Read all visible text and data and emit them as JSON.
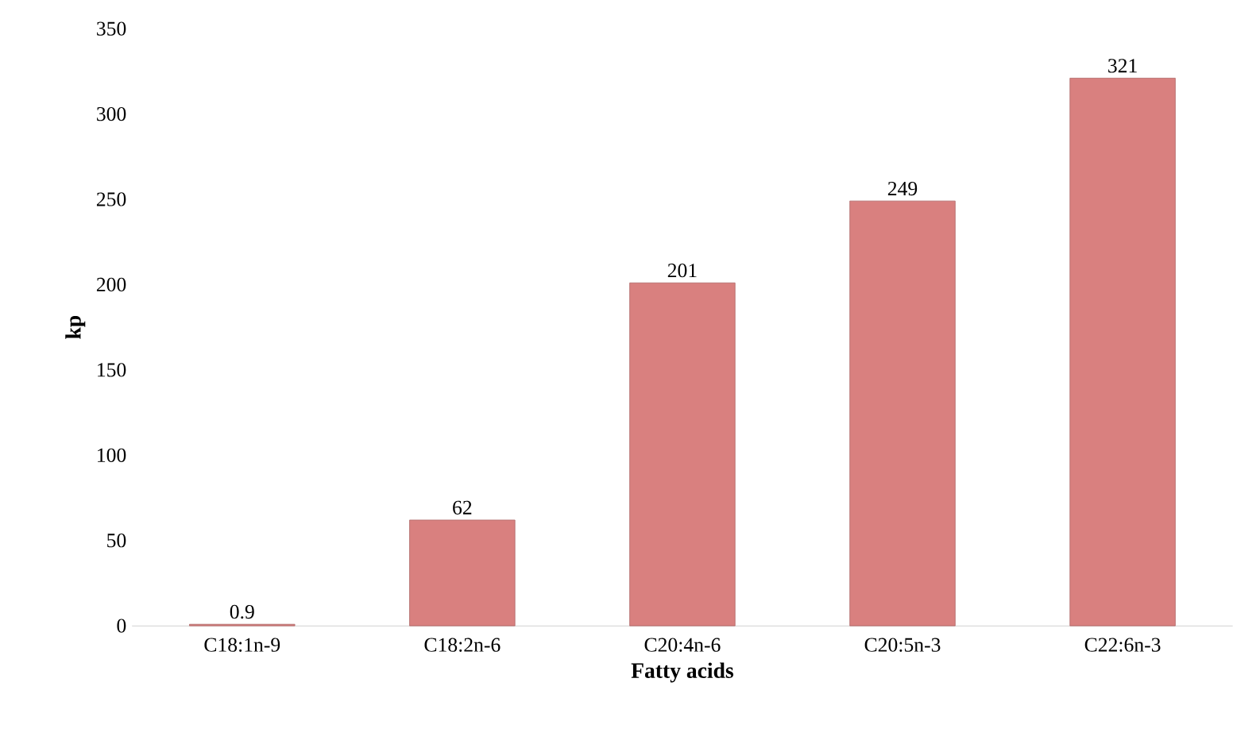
{
  "chart_data": {
    "type": "bar",
    "xlabel": "Fatty acids",
    "ylabel": "kp",
    "categories": [
      "C18:1n-9",
      "C18:2n-6",
      "C20:4n-6",
      "C20:5n-3",
      "C22:6n-3"
    ],
    "values": [
      0.9,
      62,
      201,
      249,
      321
    ],
    "color": "#d9807f",
    "ylim": [
      0,
      350
    ],
    "yticks": [
      0,
      50,
      100,
      150,
      200,
      250,
      300,
      350
    ],
    "data_labels": true
  }
}
